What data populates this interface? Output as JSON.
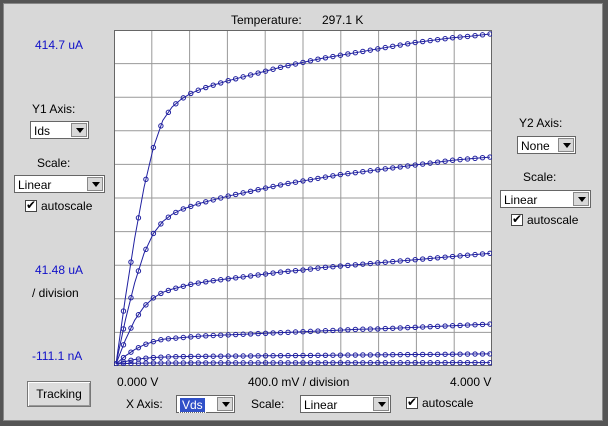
{
  "temperature": {
    "label": "Temperature:",
    "value": "297.1 K"
  },
  "y1": {
    "axis_label": "Y1 Axis:",
    "axis_value": "Ids",
    "scale_label": "Scale:",
    "scale_value": "Linear",
    "autoscale_label": "autoscale",
    "autoscale_checked": true,
    "top_value": "414.7 uA",
    "div_value": "41.48 uA",
    "div_label": "/ division",
    "bottom_value": "-111.1 nA"
  },
  "y2": {
    "axis_label": "Y2 Axis:",
    "axis_value": "None",
    "scale_label": "Scale:",
    "scale_value": "Linear",
    "autoscale_label": "autoscale",
    "autoscale_checked": true
  },
  "x": {
    "axis_label": "X Axis:",
    "axis_value": "Vds",
    "scale_label": "Scale:",
    "scale_value": "Linear",
    "autoscale_label": "autoscale",
    "autoscale_checked": true,
    "left_value": "0.000 V",
    "div_value": "400.0 mV  / division",
    "right_value": "4.000 V"
  },
  "tracking_button": "Tracking",
  "colors": {
    "curve": "#2020a0",
    "grid": "#999999",
    "accent": "#1010c8"
  },
  "chart_data": {
    "type": "line",
    "xlabel": "",
    "ylabel": "",
    "x_unit": "V",
    "y_unit": "uA",
    "xlim": [
      0,
      4.0
    ],
    "ylim": [
      -0.111,
      414.7
    ],
    "grid": true,
    "x": [
      0,
      0.1,
      0.2,
      0.3,
      0.4,
      0.5,
      0.6,
      0.7,
      0.8,
      0.9,
      1.0,
      1.2,
      1.4,
      1.6,
      1.8,
      2.0,
      2.2,
      2.4,
      2.6,
      2.8,
      3.0,
      3.2,
      3.4,
      3.6,
      3.8,
      4.0
    ],
    "series": [
      {
        "values": [
          0,
          83,
          158,
          222,
          272,
          306,
          323,
          333,
          340,
          345,
          349,
          356,
          362,
          368,
          374,
          379,
          384,
          388,
          392,
          396,
          400,
          404,
          407,
          410,
          412,
          414.7
        ]
      },
      {
        "values": [
          0,
          55,
          102,
          139,
          164,
          179,
          188,
          194,
          198,
          202,
          205,
          211,
          216,
          221,
          226,
          230,
          234,
          238,
          241,
          244,
          247,
          250,
          253,
          256,
          258,
          260
        ]
      },
      {
        "values": [
          0,
          30,
          55,
          72,
          83,
          90,
          94,
          97,
          100,
          102,
          104,
          107,
          110,
          113,
          116,
          118,
          121,
          123,
          125,
          127,
          129,
          131,
          133,
          135,
          137,
          139
        ]
      },
      {
        "values": [
          0,
          10,
          18,
          24,
          28,
          31,
          32,
          33,
          34,
          35,
          35.5,
          36.5,
          37.5,
          38.5,
          39.5,
          40.5,
          41.5,
          42.5,
          43.5,
          44,
          45,
          46,
          47,
          48,
          49,
          50
        ]
      },
      {
        "values": [
          0,
          3,
          5.5,
          7,
          8,
          8.6,
          9,
          9.2,
          9.4,
          9.5,
          9.6,
          9.8,
          10,
          10.2,
          10.4,
          10.6,
          10.8,
          11,
          11.2,
          11.4,
          11.6,
          11.8,
          12,
          12.2,
          12.4,
          12.6
        ]
      },
      {
        "values": [
          0,
          0.5,
          0.8,
          1.0,
          1.1,
          1.15,
          1.2,
          1.22,
          1.24,
          1.26,
          1.28,
          1.3,
          1.32,
          1.34,
          1.36,
          1.38,
          1.4,
          1.42,
          1.44,
          1.46,
          1.48,
          1.5,
          1.52,
          1.54,
          1.56,
          1.58
        ]
      }
    ]
  }
}
